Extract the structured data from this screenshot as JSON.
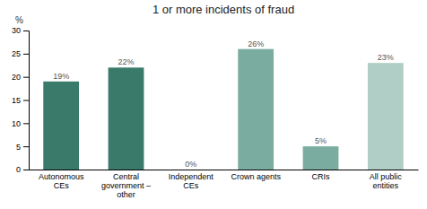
{
  "chart_data": {
    "type": "bar",
    "title": "1 or more incidents of fraud",
    "categories": [
      "Autonomous\nCEs",
      "Central\ngovernment –\nother",
      "Independent\nCEs",
      "Crown agents",
      "CRIs",
      "All public\nentities"
    ],
    "values": [
      19,
      22,
      0,
      26,
      5,
      23
    ],
    "value_labels": [
      "19%",
      "22%",
      "0%",
      "26%",
      "5%",
      "23%"
    ],
    "colors": [
      "#3a7a6a",
      "#3a7a6a",
      "#3a7a6a",
      "#7aada0",
      "#7aada0",
      "#b0cec5"
    ],
    "ylabel": "%",
    "ylim": [
      0,
      30
    ],
    "yticks": [
      0,
      5,
      10,
      15,
      20,
      25,
      30
    ],
    "grid": false
  }
}
